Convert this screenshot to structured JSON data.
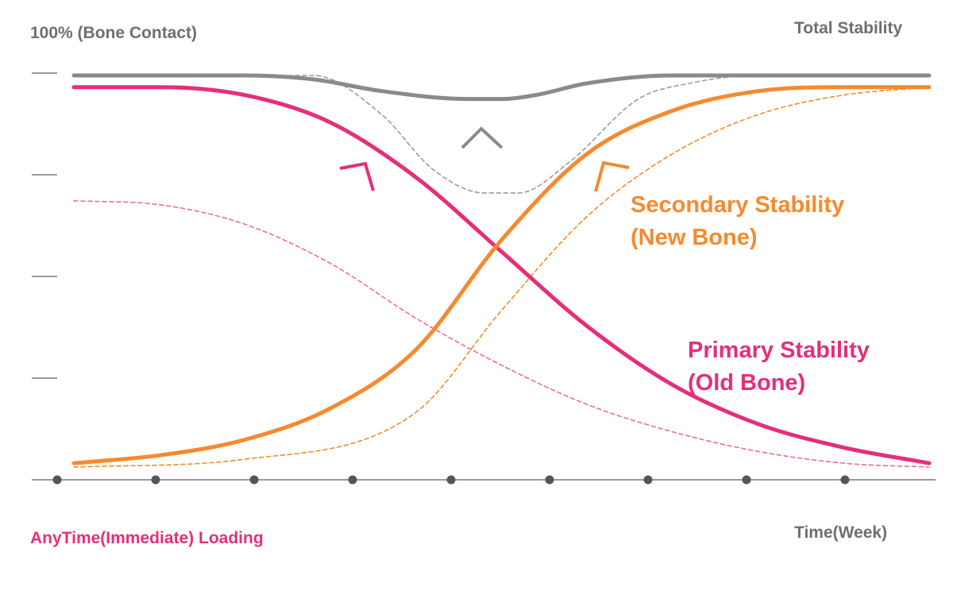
{
  "chart_data": {
    "type": "line",
    "y_axis_label": "100% (Bone Contact)",
    "x_axis_label": "Time(Week)",
    "ylim": [
      0,
      100
    ],
    "x_ticks_count": 9,
    "y_ticks_count": 5,
    "series": [
      {
        "name": "Total Stability",
        "style": "solid",
        "color": "#8a8a8c",
        "x": [
          0,
          10,
          20,
          28,
          36,
          46,
          50,
          54,
          60,
          70,
          80,
          90,
          100
        ],
        "y": [
          100,
          100,
          100,
          99,
          96,
          94,
          94,
          95,
          98,
          100,
          100,
          100,
          100
        ]
      },
      {
        "name": "Primary Stability (Old Bone)",
        "style": "solid",
        "color": "#e42f7a",
        "x": [
          0,
          10,
          20,
          30,
          40,
          50,
          60,
          70,
          80,
          90,
          100
        ],
        "y": [
          97,
          97,
          95,
          88,
          74,
          55,
          36,
          21,
          11,
          5,
          1
        ]
      },
      {
        "name": "Secondary Stability (New Bone)",
        "style": "solid",
        "color": "#f58a2e",
        "x": [
          0,
          10,
          20,
          30,
          40,
          50,
          60,
          70,
          80,
          90,
          100
        ],
        "y": [
          1,
          3,
          7,
          15,
          30,
          58,
          80,
          91,
          96,
          97,
          97
        ]
      },
      {
        "style": "dashed",
        "color": "#9c9c9c",
        "x": [
          0,
          28,
          36,
          42,
          48,
          52,
          58,
          66,
          72,
          80,
          100
        ],
        "y": [
          100,
          100,
          90,
          76,
          70,
          70,
          78,
          94,
          98,
          100,
          100
        ]
      },
      {
        "style": "dashed",
        "color": "#f58a2e",
        "x": [
          0,
          20,
          40,
          50,
          60,
          70,
          80,
          90,
          100
        ],
        "y": [
          0,
          2,
          14,
          40,
          64,
          80,
          90,
          95,
          97
        ]
      },
      {
        "style": "dashed",
        "color": "#f06aa0",
        "x": [
          0,
          10,
          20,
          30,
          40,
          50,
          60,
          70,
          80,
          90,
          100
        ],
        "y": [
          68,
          67,
          62,
          52,
          38,
          26,
          16,
          9,
          4,
          1,
          0
        ]
      }
    ],
    "annotations": [
      {
        "type": "chevron",
        "color": "#8a8a8c",
        "point_up": true
      },
      {
        "type": "corner",
        "color": "#e42f7a"
      },
      {
        "type": "corner",
        "color": "#f58a2e"
      }
    ]
  },
  "labels": {
    "y_title": "100% (Bone Contact)",
    "total": "Total Stability",
    "secondary_line1": "Secondary Stability",
    "secondary_line2": "(New Bone)",
    "primary_line1": "Primary Stability",
    "primary_line2": "(Old Bone)",
    "loading": "AnyTime(Immediate) Loading",
    "x_title": "Time(Week)"
  },
  "colors": {
    "axis": "#9a9a9a",
    "tick_dot": "#555555",
    "text_gray": "#6f6f6f",
    "primary": "#e42f7a",
    "secondary": "#f58a2e",
    "total": "#8a8a8c"
  }
}
